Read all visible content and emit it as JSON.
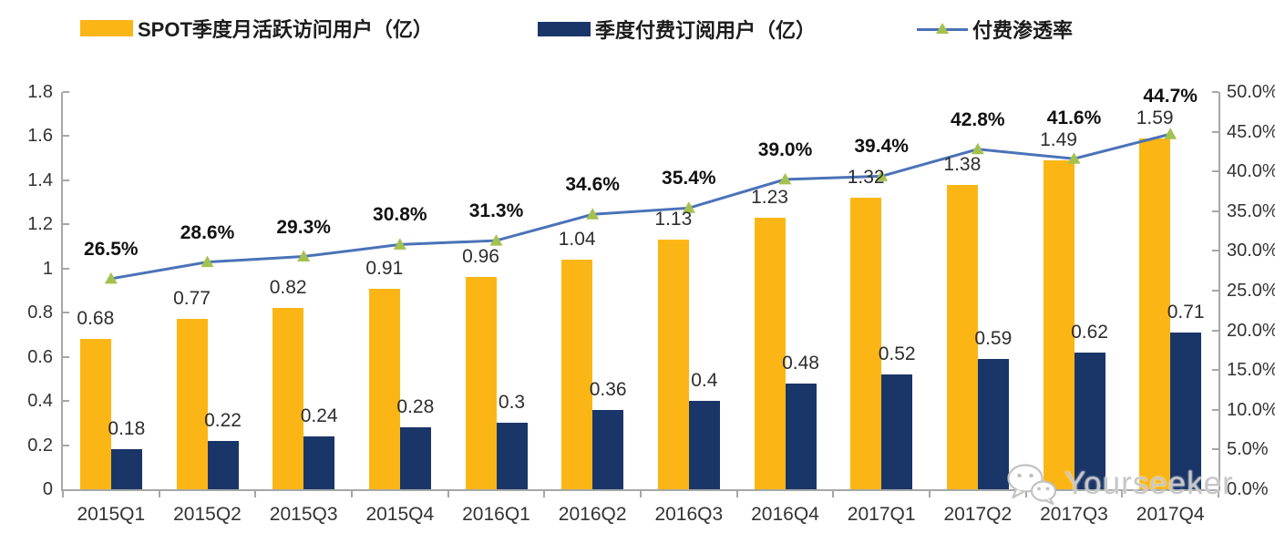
{
  "legend": [
    {
      "label": "SPOT季度月活跃访问用户（亿）",
      "type": "bar",
      "color": "#FBB615"
    },
    {
      "label": "季度付费订阅用户（亿）",
      "type": "bar",
      "color": "#1A3668"
    },
    {
      "label": "付费渗透率",
      "type": "line",
      "color": "#4B72B8",
      "marker_color": "#A3C14F"
    }
  ],
  "chart_data": {
    "type": "bar",
    "subtype": "combo-bar-line",
    "categories": [
      "2015Q1",
      "2015Q2",
      "2015Q3",
      "2015Q4",
      "2016Q1",
      "2016Q2",
      "2016Q3",
      "2016Q4",
      "2017Q1",
      "2017Q2",
      "2017Q3",
      "2017Q4"
    ],
    "series": [
      {
        "name": "SPOT季度月活跃访问用户（亿）",
        "type": "bar",
        "axis": "left",
        "color": "#FBB615",
        "values": [
          0.68,
          0.77,
          0.82,
          0.91,
          0.96,
          1.04,
          1.13,
          1.23,
          1.32,
          1.38,
          1.49,
          1.59
        ],
        "labels": [
          "0.68",
          "0.77",
          "0.82",
          "0.91",
          "0.96",
          "1.04",
          "1.13",
          "1.23",
          "1.32",
          "1.38",
          "1.49",
          "1.59"
        ]
      },
      {
        "name": "季度付费订阅用户（亿）",
        "type": "bar",
        "axis": "left",
        "color": "#1A3668",
        "values": [
          0.18,
          0.22,
          0.24,
          0.28,
          0.3,
          0.36,
          0.4,
          0.48,
          0.52,
          0.59,
          0.62,
          0.71
        ],
        "labels": [
          "0.18",
          "0.22",
          "0.24",
          "0.28",
          "0.3",
          "0.36",
          "0.4",
          "0.48",
          "0.52",
          "0.59",
          "0.62",
          "0.71"
        ]
      },
      {
        "name": "付费渗透率",
        "type": "line",
        "axis": "right",
        "color": "#4B72B8",
        "marker": "triangle",
        "marker_color": "#A3C14F",
        "values": [
          26.5,
          28.6,
          29.3,
          30.8,
          31.3,
          34.6,
          35.4,
          39.0,
          39.4,
          42.8,
          41.6,
          44.7
        ],
        "labels": [
          "26.5%",
          "28.6%",
          "29.3%",
          "30.8%",
          "31.3%",
          "34.6%",
          "35.4%",
          "39.0%",
          "39.4%",
          "42.8%",
          "41.6%",
          "44.7%"
        ]
      }
    ],
    "left_axis": {
      "min": 0,
      "max": 1.8,
      "step": 0.2,
      "ticks": [
        "0",
        "0.2",
        "0.4",
        "0.6",
        "0.8",
        "1",
        "1.2",
        "1.4",
        "1.6",
        "1.8"
      ]
    },
    "right_axis": {
      "min": 0,
      "max": 50,
      "step": 5,
      "ticks": [
        "0.0%",
        "5.0%",
        "10.0%",
        "15.0%",
        "20.0%",
        "25.0%",
        "30.0%",
        "35.0%",
        "40.0%",
        "45.0%",
        "50.0%"
      ]
    },
    "grid": false,
    "legend_position": "top",
    "title": ""
  },
  "watermark": {
    "text": "Yourseeker",
    "icon": "wechat-icon"
  },
  "colors": {
    "bar_mau": "#FBB615",
    "bar_subscribers": "#1A3668",
    "line_penetration": "#4B72B8",
    "line_marker": "#A3C14F",
    "axis": "#A6A6A6",
    "text": "#2e2e2e",
    "watermark": "#c7c7c7"
  }
}
